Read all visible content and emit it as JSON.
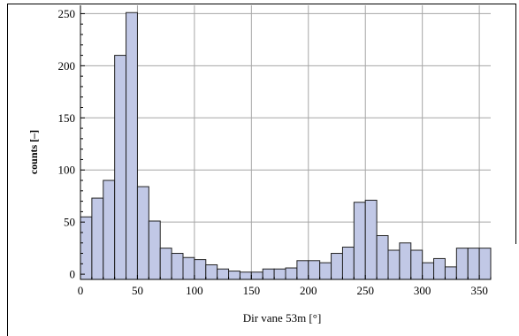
{
  "chart_data": {
    "type": "bar",
    "title": "",
    "xlabel": "Dir vane 53m [°]",
    "ylabel": "counts [–]",
    "bin_width": 10,
    "bin_starts": [
      0,
      10,
      20,
      30,
      40,
      50,
      60,
      70,
      80,
      90,
      100,
      110,
      120,
      130,
      140,
      150,
      160,
      170,
      180,
      190,
      200,
      210,
      220,
      230,
      240,
      250,
      260,
      270,
      280,
      290,
      300,
      310,
      320,
      330,
      340,
      350
    ],
    "values": [
      55,
      73,
      90,
      210,
      251,
      84,
      51,
      25,
      20,
      16,
      14,
      9,
      5,
      3,
      2,
      2,
      5,
      5,
      6,
      13,
      13,
      11,
      20,
      26,
      69,
      71,
      37,
      23,
      30,
      23,
      11,
      15,
      7,
      25,
      25,
      25
    ],
    "xlim": [
      0,
      360
    ],
    "ylim": [
      -5,
      258
    ],
    "xticks": [
      0,
      50,
      100,
      150,
      200,
      250,
      300,
      350
    ],
    "yticks": [
      0,
      50,
      100,
      150,
      200,
      250
    ],
    "grid": true,
    "colors": {
      "bar_fill": "#c1c8e6",
      "bar_stroke": "#222222",
      "grid": "#a6a6a6"
    }
  }
}
